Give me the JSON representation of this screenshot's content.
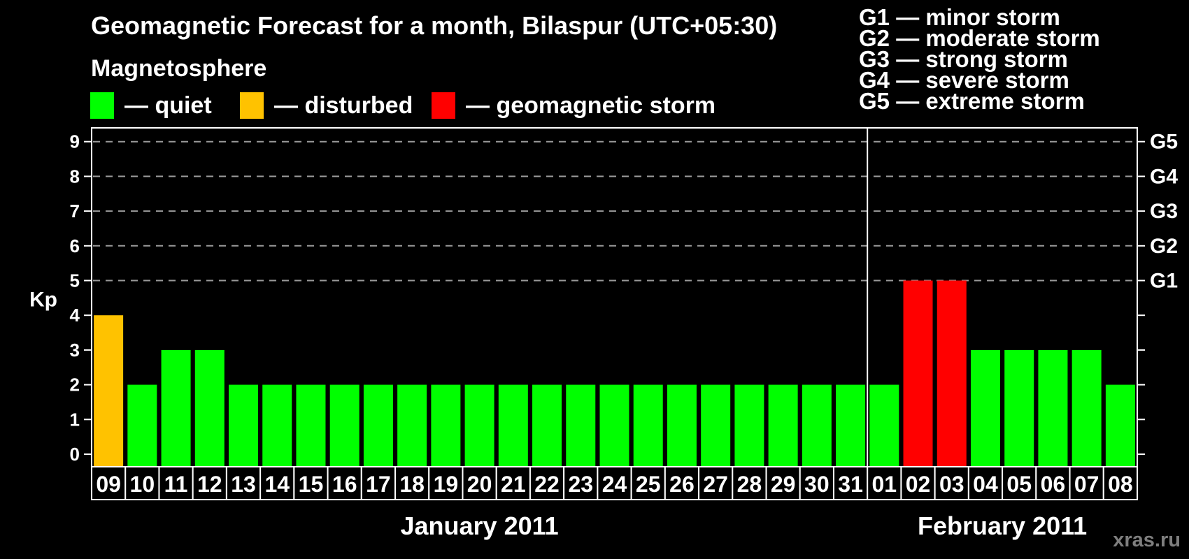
{
  "page": {
    "background": "#000000",
    "watermark": "xras.ru"
  },
  "header": {
    "title": "Geomagnetic Forecast for a month, Bilaspur (UTC+05:30)"
  },
  "legend": {
    "heading": "Magnetosphere",
    "items": [
      {
        "name": "quiet",
        "label": "— quiet",
        "color": "#00ff00"
      },
      {
        "name": "disturbed",
        "label": "— disturbed",
        "color": "#ffc200"
      },
      {
        "name": "storm",
        "label": "— geomagnetic storm",
        "color": "#ff0000"
      }
    ]
  },
  "g_scale_legend": [
    "G1 — minor storm",
    "G2 — moderate storm",
    "G3 — strong storm",
    "G4 — severe storm",
    "G5 — extreme storm"
  ],
  "chart_data": {
    "type": "bar",
    "title": "Geomagnetic Forecast for a month, Bilaspur (UTC+05:30)",
    "ylabel": "Kp",
    "ylim": [
      -0.4,
      9.4
    ],
    "yticks": [
      0,
      1,
      2,
      3,
      4,
      5,
      6,
      7,
      8,
      9
    ],
    "gridline_levels": [
      5,
      6,
      7,
      8,
      9
    ],
    "grid": "dashed-horizontal",
    "legend_position": "top",
    "right_axis": {
      "levels": [
        5,
        6,
        7,
        8,
        9
      ],
      "labels": [
        "G1",
        "G2",
        "G3",
        "G4",
        "G5"
      ]
    },
    "status_colors": {
      "quiet": "#00ff00",
      "disturbed": "#ffc200",
      "storm": "#ff0000"
    },
    "months": [
      {
        "label": "January 2011",
        "days": [
          {
            "day": "09",
            "kp": 4,
            "status": "disturbed"
          },
          {
            "day": "10",
            "kp": 2,
            "status": "quiet"
          },
          {
            "day": "11",
            "kp": 3,
            "status": "quiet"
          },
          {
            "day": "12",
            "kp": 3,
            "status": "quiet"
          },
          {
            "day": "13",
            "kp": 2,
            "status": "quiet"
          },
          {
            "day": "14",
            "kp": 2,
            "status": "quiet"
          },
          {
            "day": "15",
            "kp": 2,
            "status": "quiet"
          },
          {
            "day": "16",
            "kp": 2,
            "status": "quiet"
          },
          {
            "day": "17",
            "kp": 2,
            "status": "quiet"
          },
          {
            "day": "18",
            "kp": 2,
            "status": "quiet"
          },
          {
            "day": "19",
            "kp": 2,
            "status": "quiet"
          },
          {
            "day": "20",
            "kp": 2,
            "status": "quiet"
          },
          {
            "day": "21",
            "kp": 2,
            "status": "quiet"
          },
          {
            "day": "22",
            "kp": 2,
            "status": "quiet"
          },
          {
            "day": "23",
            "kp": 2,
            "status": "quiet"
          },
          {
            "day": "24",
            "kp": 2,
            "status": "quiet"
          },
          {
            "day": "25",
            "kp": 2,
            "status": "quiet"
          },
          {
            "day": "26",
            "kp": 2,
            "status": "quiet"
          },
          {
            "day": "27",
            "kp": 2,
            "status": "quiet"
          },
          {
            "day": "28",
            "kp": 2,
            "status": "quiet"
          },
          {
            "day": "29",
            "kp": 2,
            "status": "quiet"
          },
          {
            "day": "30",
            "kp": 2,
            "status": "quiet"
          },
          {
            "day": "31",
            "kp": 2,
            "status": "quiet"
          }
        ]
      },
      {
        "label": "February 2011",
        "days": [
          {
            "day": "01",
            "kp": 2,
            "status": "quiet"
          },
          {
            "day": "02",
            "kp": 5,
            "status": "storm"
          },
          {
            "day": "03",
            "kp": 5,
            "status": "storm"
          },
          {
            "day": "04",
            "kp": 3,
            "status": "quiet"
          },
          {
            "day": "05",
            "kp": 3,
            "status": "quiet"
          },
          {
            "day": "06",
            "kp": 3,
            "status": "quiet"
          },
          {
            "day": "07",
            "kp": 3,
            "status": "quiet"
          },
          {
            "day": "08",
            "kp": 2,
            "status": "quiet"
          }
        ]
      }
    ]
  }
}
